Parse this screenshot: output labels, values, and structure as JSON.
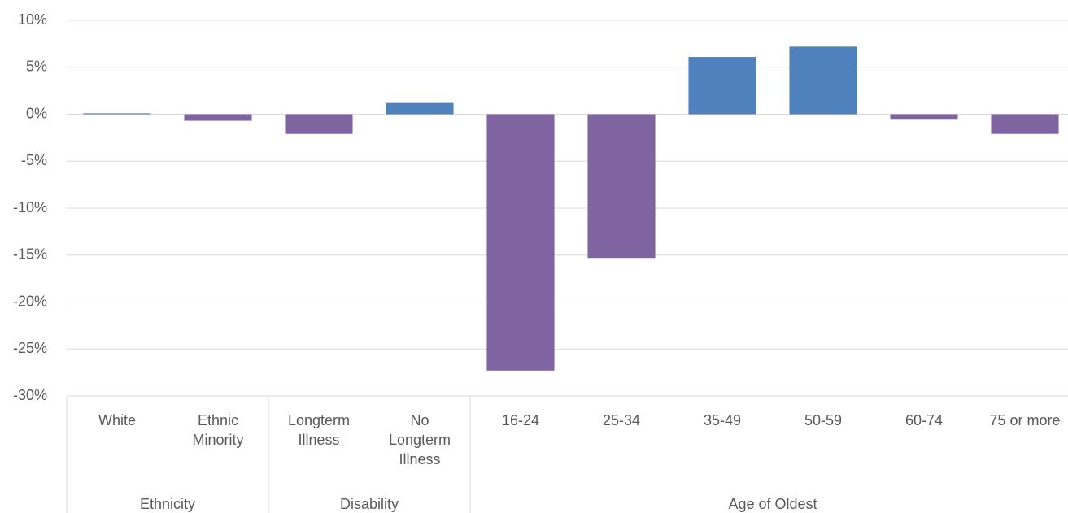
{
  "chart_data": {
    "type": "bar",
    "groups": [
      {
        "name": "Ethnicity",
        "categories": [
          "White",
          "Ethnic Minority"
        ],
        "values": [
          0.1,
          -0.7
        ]
      },
      {
        "name": "Disability",
        "categories": [
          "Longterm Illness",
          "No Longterm Illness"
        ],
        "values": [
          -2.1,
          1.2
        ]
      },
      {
        "name": "Age of Oldest",
        "categories": [
          "16-24",
          "25-34",
          "35-49",
          "50-59",
          "60-74",
          "75 or more"
        ],
        "values": [
          -27.3,
          -15.3,
          6.1,
          7.2,
          -0.5,
          -2.1
        ]
      }
    ],
    "positive_color": "#4f81bd",
    "negative_color": "#8064a2",
    "ylim": [
      -30,
      10
    ],
    "yticks": [
      {
        "value": -30,
        "label": "-30%"
      },
      {
        "value": -25,
        "label": "-25%"
      },
      {
        "value": -20,
        "label": "-20%"
      },
      {
        "value": -15,
        "label": "-15%"
      },
      {
        "value": -10,
        "label": "-10%"
      },
      {
        "value": -5,
        "label": "-5%"
      },
      {
        "value": 0,
        "label": "0%"
      },
      {
        "value": 5,
        "label": "5%"
      },
      {
        "value": 10,
        "label": "10%"
      }
    ],
    "grid": true
  }
}
